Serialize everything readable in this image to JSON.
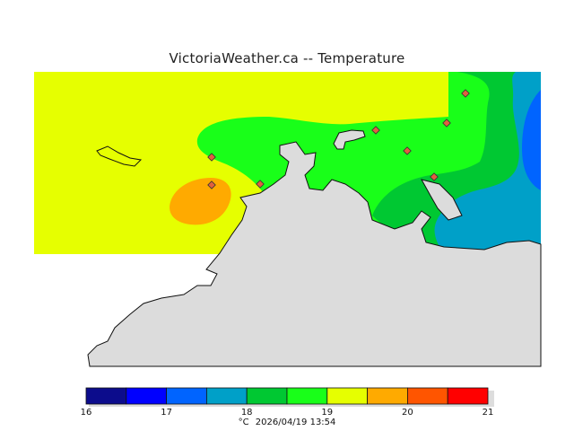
{
  "title": "VictoriaWeather.ca  --  Temperature",
  "legend": {
    "unit": "°C",
    "timestamp": "2026/04/19 13:54",
    "bins": [
      {
        "from": 16,
        "to": 16.5,
        "color": "#0c0c8c"
      },
      {
        "from": 16.5,
        "to": 17,
        "color": "#0000ff"
      },
      {
        "from": 17,
        "to": 17.5,
        "color": "#0064ff"
      },
      {
        "from": 17.5,
        "to": 18,
        "color": "#00a0c8"
      },
      {
        "from": 18,
        "to": 18.5,
        "color": "#00c832"
      },
      {
        "from": 18.5,
        "to": 19,
        "color": "#19ff19"
      },
      {
        "from": 19,
        "to": 19.5,
        "color": "#e6ff00"
      },
      {
        "from": 19.5,
        "to": 20,
        "color": "#ffaa00"
      },
      {
        "from": 20,
        "to": 20.5,
        "color": "#ff5500"
      },
      {
        "from": 20.5,
        "to": 21,
        "color": "#ff0000"
      }
    ],
    "tick_labels": [
      "16",
      "17",
      "18",
      "19",
      "20",
      "21"
    ]
  },
  "colors": {
    "land": "#dcdcdc",
    "coast": "#111111",
    "station": "#e06040"
  }
}
